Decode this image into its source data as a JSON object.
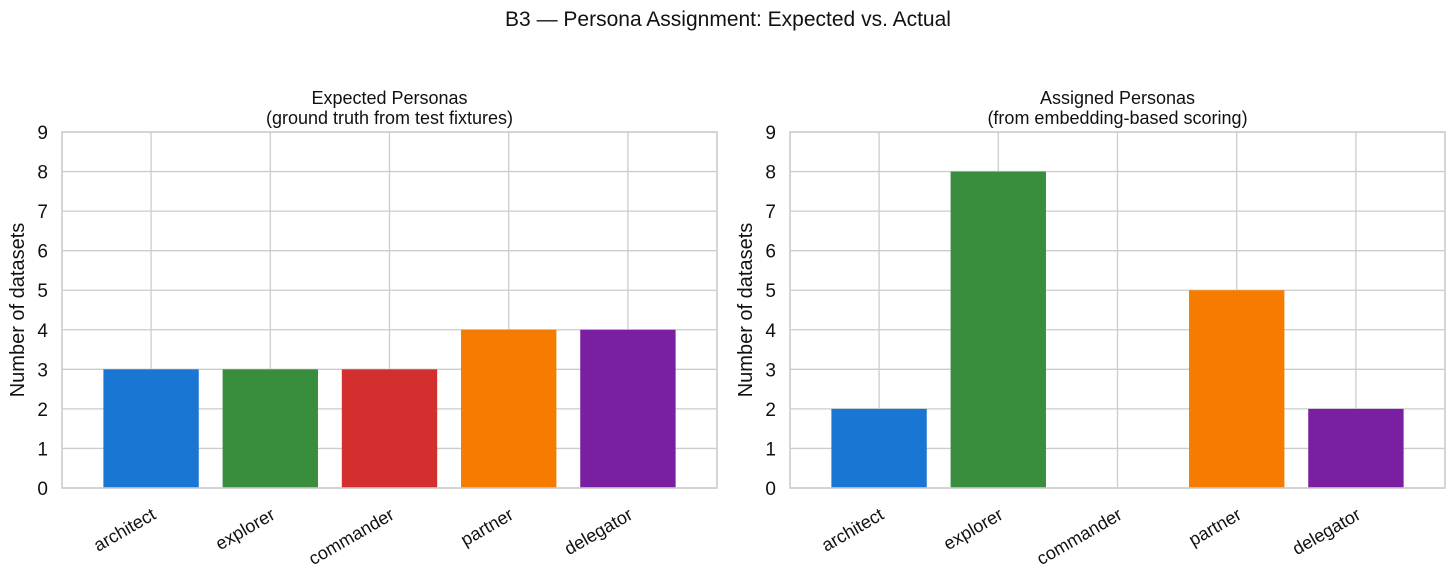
{
  "figure": {
    "title": "B3 — Persona Assignment: Expected vs. Actual"
  },
  "chart_data": [
    {
      "type": "bar",
      "title": "Expected Personas",
      "subtitle": "(ground truth from test fixtures)",
      "xlabel": "",
      "ylabel": "Number of datasets",
      "ylim": [
        0,
        9
      ],
      "yticks": [
        0,
        1,
        2,
        3,
        4,
        5,
        6,
        7,
        8,
        9
      ],
      "grid": true,
      "categories": [
        "architect",
        "explorer",
        "commander",
        "partner",
        "delegator"
      ],
      "values": [
        3,
        3,
        3,
        4,
        4
      ],
      "colors": [
        "#1976d2",
        "#388e3c",
        "#d32f2f",
        "#f57c00",
        "#7b1fa2"
      ]
    },
    {
      "type": "bar",
      "title": "Assigned Personas",
      "subtitle": "(from embedding-based scoring)",
      "xlabel": "",
      "ylabel": "Number of datasets",
      "ylim": [
        0,
        9
      ],
      "yticks": [
        0,
        1,
        2,
        3,
        4,
        5,
        6,
        7,
        8,
        9
      ],
      "grid": true,
      "categories": [
        "architect",
        "explorer",
        "commander",
        "partner",
        "delegator"
      ],
      "values": [
        2,
        8,
        0,
        5,
        2
      ],
      "colors": [
        "#1976d2",
        "#388e3c",
        "#d32f2f",
        "#f57c00",
        "#7b1fa2"
      ]
    }
  ]
}
